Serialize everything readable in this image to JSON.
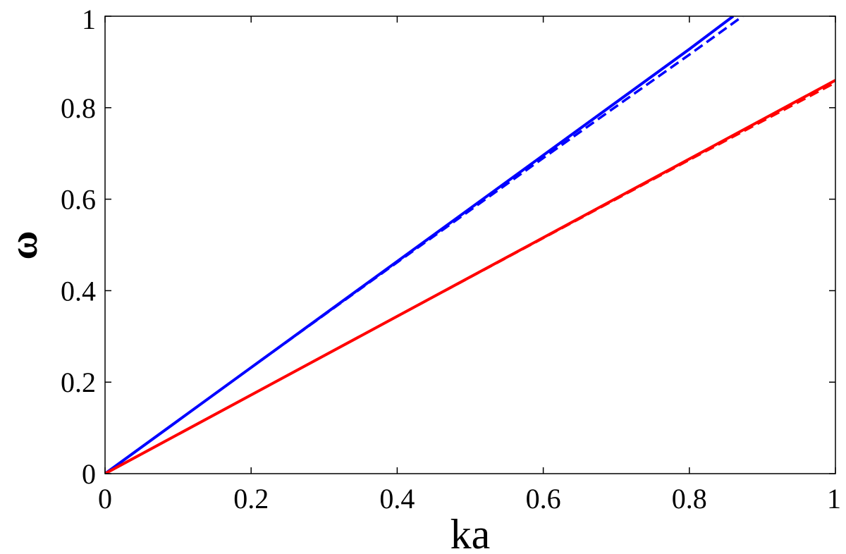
{
  "chart_data": {
    "type": "line",
    "title": "",
    "xlabel": "ka",
    "ylabel": "ω",
    "xlim": [
      0,
      1
    ],
    "ylim": [
      0,
      1
    ],
    "xticks": [
      "0",
      "0.2",
      "0.4",
      "0.6",
      "0.8",
      "1"
    ],
    "yticks": [
      "0",
      "0.2",
      "0.4",
      "0.6",
      "0.8",
      "1"
    ],
    "grid": false,
    "legend": "none",
    "series": [
      {
        "style": "solid",
        "color": "#0000ff",
        "x": [
          0,
          0.2,
          0.4,
          0.6,
          0.8,
          0.86
        ],
        "y": [
          0,
          0.232,
          0.464,
          0.696,
          0.928,
          1.0
        ]
      },
      {
        "style": "dashed",
        "color": "#0000ff",
        "x": [
          0,
          0.2,
          0.4,
          0.6,
          0.8,
          0.873
        ],
        "y": [
          0,
          0.232,
          0.462,
          0.69,
          0.916,
          1.0
        ]
      },
      {
        "style": "solid",
        "color": "#ff0000",
        "x": [
          0,
          0.2,
          0.4,
          0.6,
          0.8,
          1.0
        ],
        "y": [
          0,
          0.172,
          0.344,
          0.516,
          0.688,
          0.86
        ]
      },
      {
        "style": "dashed",
        "color": "#ff0000",
        "x": [
          0,
          0.2,
          0.4,
          0.6,
          0.8,
          1.0
        ],
        "y": [
          0,
          0.172,
          0.344,
          0.515,
          0.686,
          0.855
        ]
      }
    ]
  }
}
